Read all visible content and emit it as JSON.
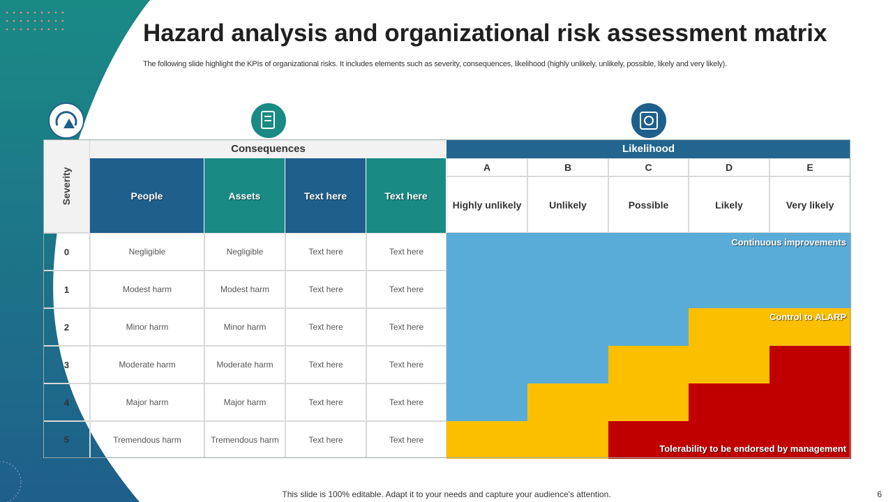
{
  "title": "Hazard analysis and organizational risk assessment matrix",
  "subtitle": "The following slide highlight the KPIs of organizational risks. It includes elements such as severity, consequences, likelihood (highly unlikely, unlikely, possible, likely and very likely).",
  "table": {
    "severity_header": "Severity",
    "consequences_header": "Consequences",
    "likelihood_header": "Likelihood",
    "consequence_columns": [
      "People",
      "Assets",
      "Text here",
      "Text here"
    ],
    "likelihood_columns": [
      {
        "letter": "A",
        "label": "Highly unlikely"
      },
      {
        "letter": "B",
        "label": "Unlikely"
      },
      {
        "letter": "C",
        "label": "Possible"
      },
      {
        "letter": "D",
        "label": "Likely"
      },
      {
        "letter": "E",
        "label": "Very likely"
      }
    ],
    "rows": [
      {
        "severity": "0",
        "cells": [
          "Negligible",
          "Negligible",
          "Text here",
          "Text here"
        ]
      },
      {
        "severity": "1",
        "cells": [
          "Modest harm",
          "Modest harm",
          "Text here",
          "Text here"
        ]
      },
      {
        "severity": "2",
        "cells": [
          "Minor harm",
          "Minor harm",
          "Text here",
          "Text here"
        ]
      },
      {
        "severity": "3",
        "cells": [
          "Moderate harm",
          "Moderate harm",
          "Text here",
          "Text here"
        ]
      },
      {
        "severity": "4",
        "cells": [
          "Major harm",
          "Major harm",
          "Text here",
          "Text here"
        ]
      },
      {
        "severity": "5",
        "cells": [
          "Tremendous harm",
          "Tremendous harm",
          "Text here",
          "Text here"
        ]
      }
    ],
    "risk_colors": [
      [
        "#5aacd8",
        "#5aacd8",
        "#5aacd8",
        "#5aacd8",
        "#5aacd8"
      ],
      [
        "#5aacd8",
        "#5aacd8",
        "#5aacd8",
        "#5aacd8",
        "#5aacd8"
      ],
      [
        "#5aacd8",
        "#5aacd8",
        "#5aacd8",
        "#fcbf00",
        "#fcbf00"
      ],
      [
        "#5aacd8",
        "#5aacd8",
        "#fcbf00",
        "#fcbf00",
        "#c00000"
      ],
      [
        "#5aacd8",
        "#fcbf00",
        "#fcbf00",
        "#c00000",
        "#c00000"
      ],
      [
        "#fcbf00",
        "#fcbf00",
        "#c00000",
        "#c00000",
        "#c00000"
      ]
    ],
    "zones": [
      "Continuous improvements",
      "Control to ALARP",
      "Tolerability to be endorsed by management"
    ]
  },
  "footer": "This slide is 100% editable. Adapt it to your needs and capture your audience's attention.",
  "page_number": "6"
}
